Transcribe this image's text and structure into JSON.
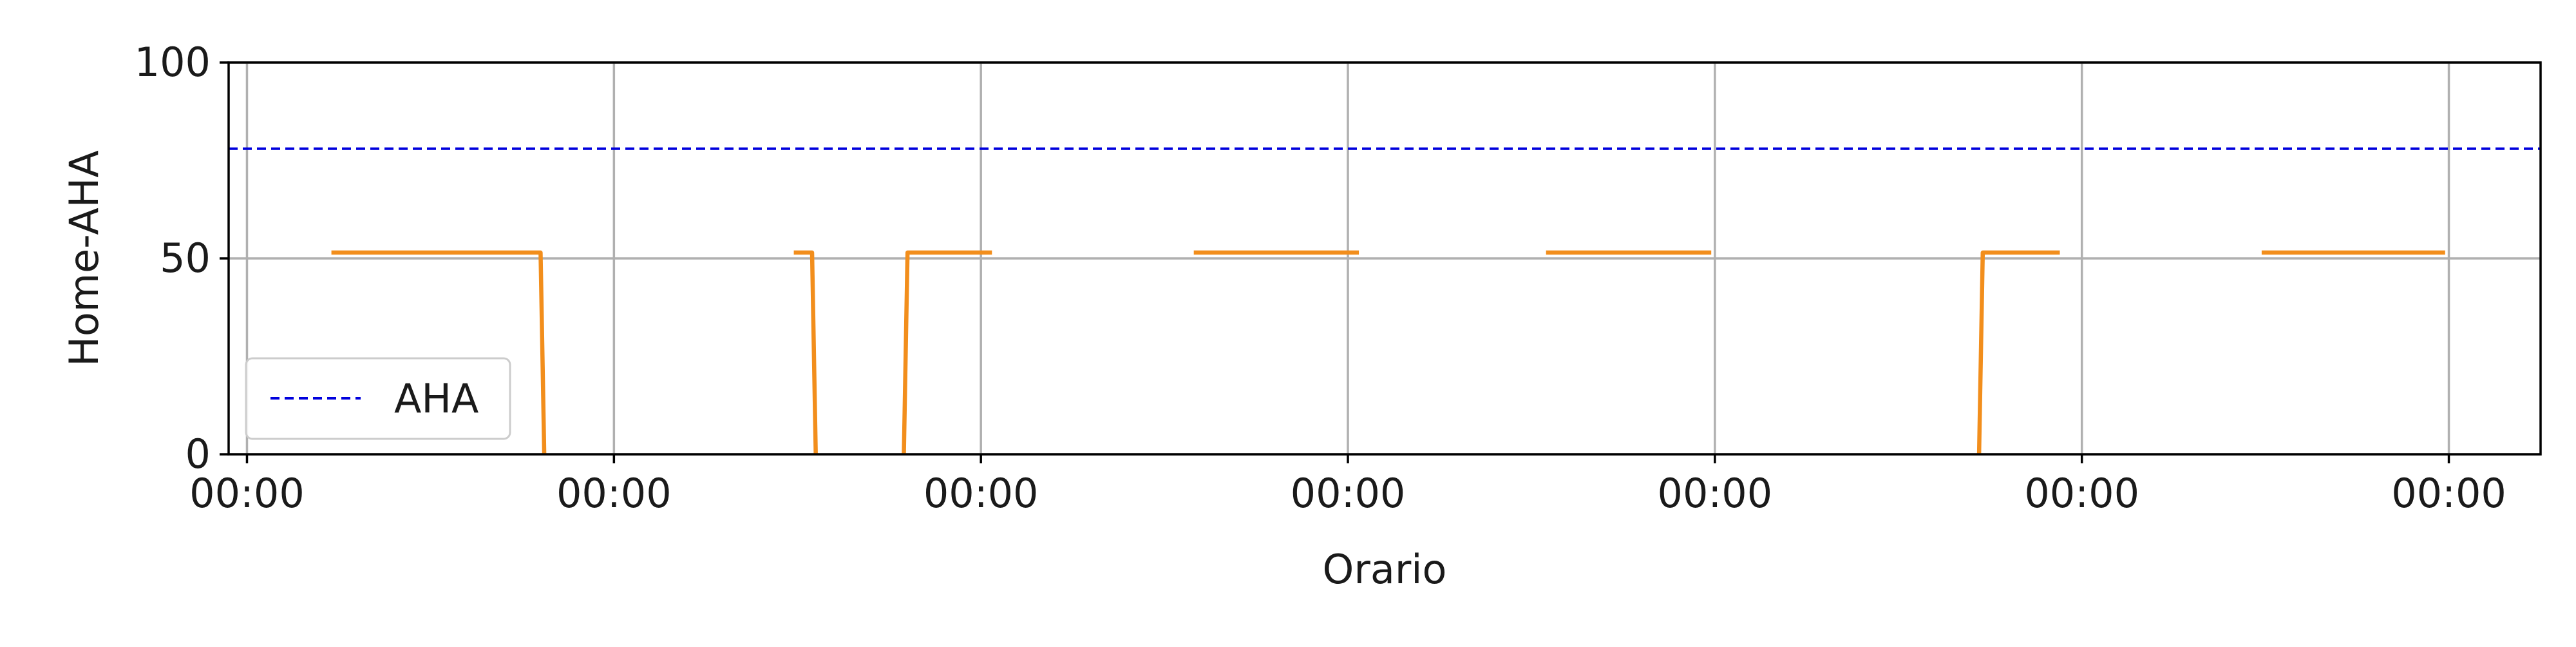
{
  "chart_data": {
    "type": "line",
    "title": "",
    "xlabel": "Orario",
    "ylabel": "Home-AHA",
    "xlim": [
      -0.05,
      6.25
    ],
    "ylim": [
      0,
      100
    ],
    "x_ticks": [
      0,
      1,
      2,
      3,
      4,
      5,
      6
    ],
    "x_tick_labels": [
      "00:00",
      "00:00",
      "00:00",
      "00:00",
      "00:00",
      "00:00",
      "00:00"
    ],
    "y_ticks": [
      0,
      50,
      100
    ],
    "y_tick_labels": [
      "0",
      "50",
      "100"
    ],
    "grid": true,
    "legend": {
      "position": "lower-left",
      "entries": [
        "AHA"
      ]
    },
    "series": [
      {
        "name": "AHA",
        "style": "dashed",
        "color": "#0000dd",
        "x": [
          -0.05,
          6.25
        ],
        "y": [
          78,
          78
        ]
      },
      {
        "name": "",
        "style": "solid",
        "color": "#f28e1c",
        "segments": [
          {
            "x": [
              0.23,
              0.8,
              0.81
            ],
            "y": [
              51.5,
              51.5,
              0
            ]
          },
          {
            "x": [
              1.49,
              1.54,
              1.55
            ],
            "y": [
              51.5,
              51.5,
              0
            ]
          },
          {
            "x": [
              1.79,
              1.8,
              2.03
            ],
            "y": [
              0,
              51.5,
              51.5
            ]
          },
          {
            "x": [
              2.58,
              3.03
            ],
            "y": [
              51.5,
              51.5
            ]
          },
          {
            "x": [
              3.54,
              3.99
            ],
            "y": [
              51.5,
              51.5
            ]
          },
          {
            "x": [
              4.72,
              4.73,
              4.94
            ],
            "y": [
              0,
              51.5,
              51.5
            ]
          },
          {
            "x": [
              5.49,
              5.99
            ],
            "y": [
              51.5,
              51.5
            ]
          }
        ]
      }
    ]
  }
}
